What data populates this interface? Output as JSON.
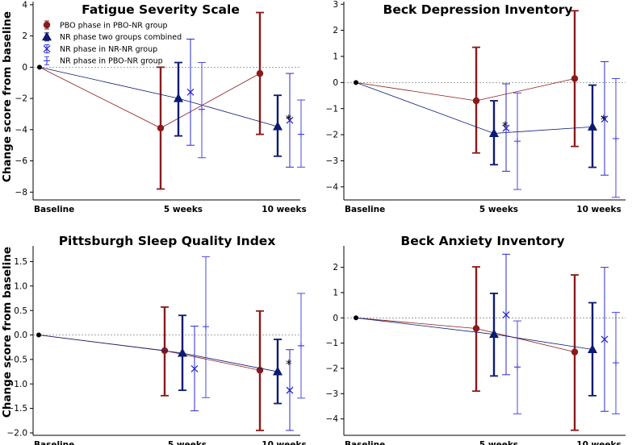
{
  "figure": {
    "ylabel": "Change score from baseline",
    "colors": {
      "pbo": "#8b1a1a",
      "nr_combined": "#0d1a73",
      "nr_nrnr": "#2a2ad0",
      "nr_pbonr": "#4a4ae0",
      "baseline_dot": "#000000"
    },
    "legend": [
      "PBO phase in PBO-NR group",
      "NR phase two groups combined",
      "NR phase in NR-NR group",
      "NR phase in PBO-NR group"
    ]
  },
  "chart_data": [
    {
      "type": "line",
      "title": "Fatigue Severity Scale",
      "categories": [
        "Baseline",
        "5 weeks",
        "10 weeks"
      ],
      "ylim": [
        -8.5,
        4.2
      ],
      "yticks": [
        4,
        2,
        0,
        -2,
        -4,
        -6,
        -8
      ],
      "grid": false,
      "legend_placement": "top-left",
      "series": [
        {
          "name": "PBO phase in PBO-NR group",
          "values": [
            0,
            -3.9,
            -0.4
          ],
          "err_low": [
            null,
            -7.8,
            -4.3
          ],
          "err_high": [
            null,
            0.0,
            3.5
          ]
        },
        {
          "name": "NR phase two groups combined",
          "values": [
            0,
            -2.0,
            -3.8
          ],
          "err_low": [
            null,
            -4.4,
            -5.7
          ],
          "err_high": [
            null,
            0.3,
            -1.8
          ]
        },
        {
          "name": "NR phase in NR-NR group",
          "values": [
            null,
            -1.6,
            -3.4
          ],
          "err_low": [
            null,
            -5.0,
            -6.4
          ],
          "err_high": [
            null,
            1.8,
            -0.4
          ]
        },
        {
          "name": "NR phase in PBO-NR group",
          "values": [
            null,
            -2.7,
            -4.3
          ],
          "err_low": [
            null,
            -5.8,
            -6.4
          ],
          "err_high": [
            null,
            0.3,
            -2.1
          ]
        }
      ],
      "significance": [
        {
          "x": "10 weeks",
          "label": "*"
        }
      ]
    },
    {
      "type": "line",
      "title": "Beck Depression Inventory",
      "categories": [
        "Baseline",
        "5 weeks",
        "10 weeks"
      ],
      "ylim": [
        -4.5,
        3.1
      ],
      "yticks": [
        3,
        2,
        1,
        0,
        -1,
        -2,
        -3,
        -4
      ],
      "grid": false,
      "series": [
        {
          "name": "PBO phase in PBO-NR group",
          "values": [
            0,
            -0.7,
            0.15
          ],
          "err_low": [
            null,
            -2.7,
            -2.45
          ],
          "err_high": [
            null,
            1.35,
            2.75
          ]
        },
        {
          "name": "NR phase two groups combined",
          "values": [
            0,
            -1.95,
            -1.7
          ],
          "err_low": [
            null,
            -3.15,
            -3.25
          ],
          "err_high": [
            null,
            -0.7,
            -0.1
          ]
        },
        {
          "name": "NR phase in NR-NR group",
          "values": [
            null,
            -1.75,
            -1.4
          ],
          "err_low": [
            null,
            -3.4,
            -3.55
          ],
          "err_high": [
            null,
            -0.05,
            0.8
          ]
        },
        {
          "name": "NR phase in PBO-NR group",
          "values": [
            null,
            -2.25,
            -2.15
          ],
          "err_low": [
            null,
            -4.1,
            -4.4
          ],
          "err_high": [
            null,
            -0.4,
            0.15
          ]
        }
      ],
      "significance": [
        {
          "x": "5 weeks",
          "label": "*"
        },
        {
          "x": "10 weeks",
          "label": "*"
        }
      ]
    },
    {
      "type": "line",
      "title": "Pittsburgh Sleep Quality Index",
      "categories": [
        "Baseline",
        "5 weeks",
        "10 weeks"
      ],
      "ylim": [
        -2.05,
        1.82
      ],
      "yticks": [
        1.5,
        1.0,
        0.5,
        0.0,
        -0.5,
        -1.0,
        -1.5,
        -2.0
      ],
      "tick_labels": [
        "1.5",
        "1.0",
        "0.5",
        "0.0",
        "−0.5",
        "−1.0",
        "−1.5",
        "−2.0"
      ],
      "grid": false,
      "series": [
        {
          "name": "PBO phase in PBO-NR group",
          "values": [
            0,
            -0.32,
            -0.72
          ],
          "err_low": [
            null,
            -1.24,
            -1.95
          ],
          "err_high": [
            null,
            0.57,
            0.49
          ]
        },
        {
          "name": "NR phase two groups combined",
          "values": [
            0,
            -0.37,
            -0.75
          ],
          "err_low": [
            null,
            -1.13,
            -1.4
          ],
          "err_high": [
            null,
            0.4,
            -0.09
          ]
        },
        {
          "name": "NR phase in NR-NR group",
          "values": [
            null,
            -0.69,
            -1.13
          ],
          "err_low": [
            null,
            -1.55,
            -1.95
          ],
          "err_high": [
            null,
            0.18,
            -0.3
          ]
        },
        {
          "name": "NR phase in PBO-NR group",
          "values": [
            null,
            0.17,
            -0.22
          ],
          "err_low": [
            null,
            -1.28,
            -1.29
          ],
          "err_high": [
            null,
            1.6,
            0.85
          ]
        }
      ],
      "significance": [
        {
          "x": "10 weeks",
          "label": "*"
        }
      ]
    },
    {
      "type": "line",
      "title": "Beck Anxiety Inventory",
      "categories": [
        "Baseline",
        "5 weeks",
        "10 weeks"
      ],
      "ylim": [
        -4.65,
        2.85
      ],
      "yticks": [
        2,
        1,
        0,
        -1,
        -2,
        -3,
        -4
      ],
      "grid": false,
      "series": [
        {
          "name": "PBO phase in PBO-NR group",
          "values": [
            0,
            -0.42,
            -1.35
          ],
          "err_low": [
            null,
            -2.9,
            -4.45
          ],
          "err_high": [
            null,
            2.02,
            1.7
          ]
        },
        {
          "name": "NR phase two groups combined",
          "values": [
            0,
            -0.65,
            -1.25
          ],
          "err_low": [
            null,
            -2.3,
            -3.08
          ],
          "err_high": [
            null,
            0.97,
            0.6
          ]
        },
        {
          "name": "NR phase in NR-NR group",
          "values": [
            null,
            0.12,
            -0.85
          ],
          "err_low": [
            null,
            -2.25,
            -3.7
          ],
          "err_high": [
            null,
            2.52,
            2.0
          ]
        },
        {
          "name": "NR phase in PBO-NR group",
          "values": [
            null,
            -1.95,
            -1.78
          ],
          "err_low": [
            null,
            -3.8,
            -3.8
          ],
          "err_high": [
            null,
            -0.12,
            0.22
          ]
        }
      ],
      "significance": []
    }
  ]
}
